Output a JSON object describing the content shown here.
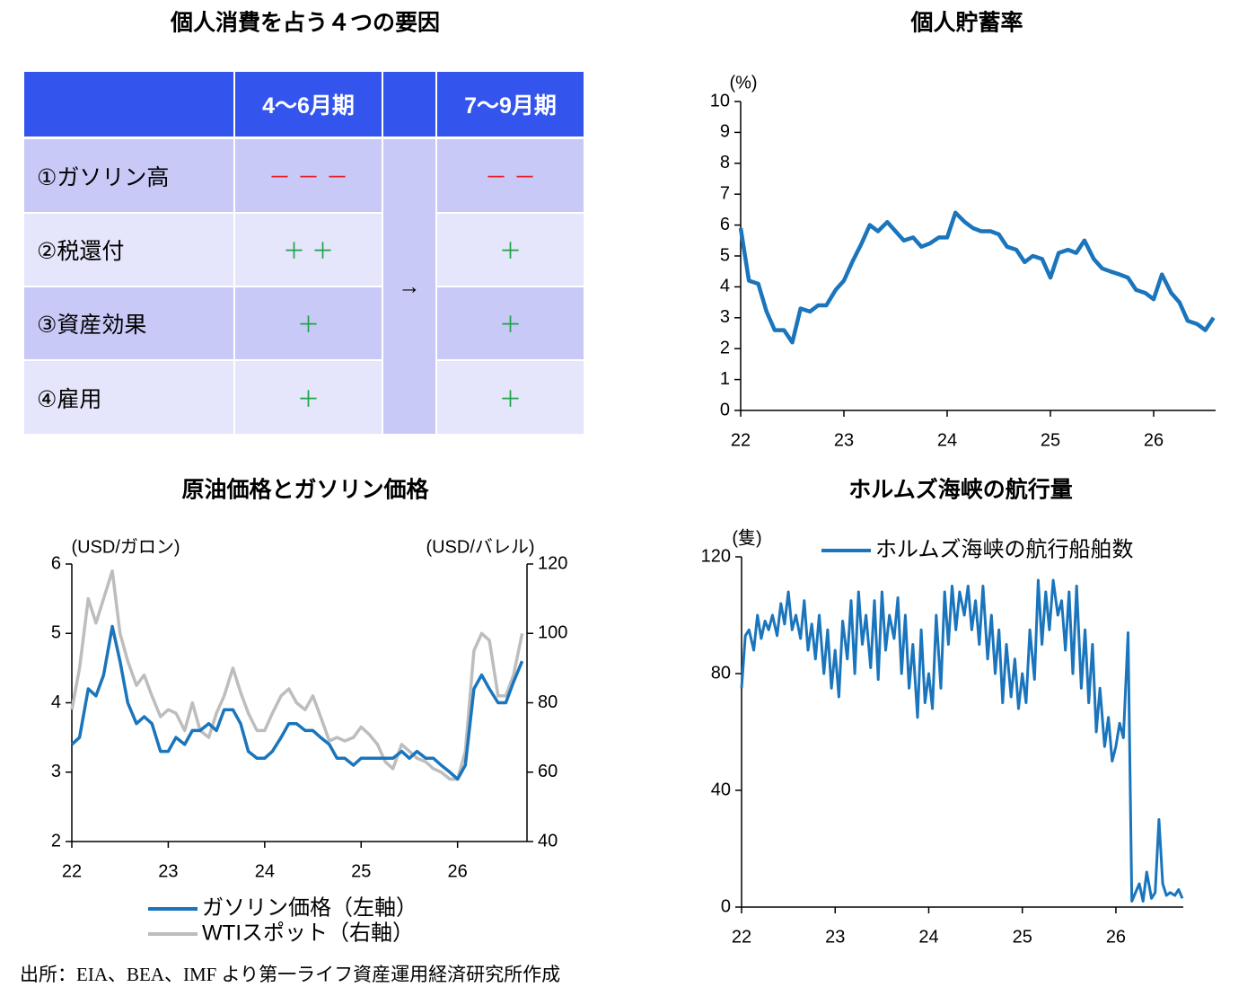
{
  "table": {
    "title": "個人消費を占う４つの要因",
    "header": [
      "4～6月期",
      "7～9月期"
    ],
    "arrow": "→",
    "rows": [
      [
        "①ガソリン高",
        "－ － －",
        "－ －"
      ],
      [
        "②税還付",
        "＋ ＋",
        "＋"
      ],
      [
        "③資産効果",
        "＋",
        "＋"
      ],
      [
        "④雇用",
        "＋",
        "＋"
      ]
    ]
  },
  "chart_data": [
    {
      "type": "line",
      "title": "個人貯蓄率",
      "y_label": "(%)",
      "xlim": [
        22,
        26.6
      ],
      "xticks": [
        22,
        23,
        24,
        25,
        26
      ],
      "ylim": [
        0,
        10
      ],
      "yticks": [
        0,
        1,
        2,
        3,
        4,
        5,
        6,
        7,
        8,
        9,
        10
      ],
      "x": [
        22,
        22.08,
        22.17,
        22.25,
        22.33,
        22.42,
        22.5,
        22.58,
        22.67,
        22.75,
        22.83,
        22.92,
        23,
        23.08,
        23.17,
        23.25,
        23.33,
        23.42,
        23.5,
        23.58,
        23.67,
        23.75,
        23.83,
        23.92,
        24,
        24.08,
        24.17,
        24.25,
        24.33,
        24.42,
        24.5,
        24.58,
        24.67,
        24.75,
        24.83,
        24.92,
        25,
        25.08,
        25.17,
        25.25,
        25.33,
        25.42,
        25.5,
        25.58,
        25.67,
        25.75,
        25.83,
        25.92,
        26,
        26.08,
        26.17,
        26.25,
        26.33,
        26.42,
        26.5,
        26.58
      ],
      "series": [
        {
          "color": "#1a75bc",
          "values": [
            5.9,
            4.2,
            4.1,
            3.2,
            2.6,
            2.6,
            2.2,
            3.3,
            3.2,
            3.4,
            3.4,
            3.9,
            4.2,
            4.8,
            5.4,
            6.0,
            5.8,
            6.1,
            5.8,
            5.5,
            5.6,
            5.3,
            5.4,
            5.6,
            5.6,
            6.4,
            6.1,
            5.9,
            5.8,
            5.8,
            5.7,
            5.3,
            5.2,
            4.8,
            5.0,
            4.9,
            4.3,
            5.1,
            5.2,
            5.1,
            5.5,
            4.9,
            4.6,
            4.5,
            4.4,
            4.3,
            3.9,
            3.8,
            3.6,
            4.4,
            3.8,
            3.5,
            2.9,
            2.8,
            2.6,
            3.0
          ]
        }
      ]
    },
    {
      "type": "line",
      "title": "原油価格とガソリン価格",
      "y_label": "(USD/ガロン)",
      "y2_label": "(USD/バレル)",
      "xlim": [
        22,
        26.72
      ],
      "xticks": [
        22,
        23,
        24,
        25,
        26
      ],
      "ylim": [
        2,
        6
      ],
      "yticks": [
        2,
        3,
        4,
        5,
        6
      ],
      "y2lim": [
        40,
        120
      ],
      "y2ticks": [
        40,
        60,
        80,
        100,
        120
      ],
      "x": [
        22,
        22.08,
        22.17,
        22.25,
        22.33,
        22.42,
        22.5,
        22.58,
        22.67,
        22.75,
        22.83,
        22.92,
        23,
        23.08,
        23.17,
        23.25,
        23.33,
        23.42,
        23.5,
        23.58,
        23.67,
        23.75,
        23.83,
        23.92,
        24,
        24.08,
        24.17,
        24.25,
        24.33,
        24.42,
        24.5,
        24.58,
        24.67,
        24.75,
        24.83,
        24.92,
        25,
        25.08,
        25.17,
        25.25,
        25.33,
        25.42,
        25.5,
        25.58,
        25.67,
        25.75,
        25.83,
        25.92,
        26,
        26.08,
        26.17,
        26.25,
        26.33,
        26.42,
        26.5,
        26.58,
        26.67
      ],
      "series": [
        {
          "name": "WTIスポット（右軸）",
          "color": "#bdbdbd",
          "axis": "y2",
          "values": [
            78,
            90,
            110,
            103,
            110,
            118,
            100,
            92,
            85,
            88,
            82,
            76,
            78,
            77,
            72,
            80,
            72,
            70,
            77,
            82,
            90,
            83,
            77,
            72,
            72,
            77,
            82,
            84,
            80,
            78,
            82,
            76,
            69,
            70,
            69,
            70,
            73,
            71,
            68,
            63,
            61,
            68,
            66,
            64,
            63,
            61,
            60,
            58,
            58,
            66,
            95,
            100,
            98,
            82,
            82,
            88,
            100
          ]
        },
        {
          "name": "ガソリン価格（左軸）",
          "color": "#1a75bc",
          "values": [
            3.4,
            3.5,
            4.2,
            4.1,
            4.4,
            5.1,
            4.6,
            4.0,
            3.7,
            3.8,
            3.7,
            3.3,
            3.3,
            3.5,
            3.4,
            3.6,
            3.6,
            3.7,
            3.6,
            3.9,
            3.9,
            3.7,
            3.3,
            3.2,
            3.2,
            3.3,
            3.5,
            3.7,
            3.7,
            3.6,
            3.6,
            3.5,
            3.4,
            3.2,
            3.2,
            3.1,
            3.2,
            3.2,
            3.2,
            3.2,
            3.2,
            3.3,
            3.2,
            3.3,
            3.2,
            3.2,
            3.1,
            3.0,
            2.9,
            3.1,
            4.2,
            4.4,
            4.2,
            4.0,
            4.0,
            4.3,
            4.6
          ]
        }
      ]
    },
    {
      "type": "line",
      "title": "ホルムズ海峡の航行量",
      "y_label": "(隻)",
      "xlim": [
        22,
        26.72
      ],
      "xticks": [
        22,
        23,
        24,
        25,
        26
      ],
      "ylim": [
        0,
        120
      ],
      "yticks": [
        0,
        40,
        80,
        120
      ],
      "x": [
        22,
        22.04,
        22.08,
        22.13,
        22.17,
        22.21,
        22.25,
        22.29,
        22.33,
        22.38,
        22.42,
        22.46,
        22.5,
        22.54,
        22.58,
        22.63,
        22.67,
        22.71,
        22.75,
        22.79,
        22.83,
        22.88,
        22.92,
        22.96,
        23,
        23.04,
        23.08,
        23.13,
        23.17,
        23.21,
        23.25,
        23.29,
        23.33,
        23.38,
        23.42,
        23.46,
        23.5,
        23.54,
        23.58,
        23.63,
        23.67,
        23.71,
        23.75,
        23.79,
        23.83,
        23.88,
        23.92,
        23.96,
        24,
        24.04,
        24.08,
        24.13,
        24.17,
        24.21,
        24.25,
        24.29,
        24.33,
        24.38,
        24.42,
        24.46,
        24.5,
        24.54,
        24.58,
        24.63,
        24.67,
        24.71,
        24.75,
        24.79,
        24.83,
        24.88,
        24.92,
        24.96,
        25,
        25.04,
        25.08,
        25.13,
        25.17,
        25.21,
        25.25,
        25.29,
        25.33,
        25.38,
        25.42,
        25.46,
        25.5,
        25.54,
        25.58,
        25.63,
        25.67,
        25.71,
        25.75,
        25.79,
        25.83,
        25.88,
        25.92,
        25.96,
        26,
        26.04,
        26.08,
        26.13,
        26.17,
        26.21,
        26.25,
        26.29,
        26.33,
        26.38,
        26.42,
        26.46,
        26.5,
        26.54,
        26.58,
        26.63,
        26.67,
        26.71
      ],
      "series": [
        {
          "name": "ホルムズ海峡の航行船舶数",
          "color": "#1a75bc",
          "values": [
            75,
            93,
            95,
            88,
            100,
            92,
            98,
            95,
            100,
            93,
            104,
            97,
            108,
            95,
            100,
            92,
            105,
            88,
            97,
            85,
            100,
            80,
            95,
            75,
            88,
            72,
            98,
            85,
            105,
            80,
            108,
            90,
            100,
            82,
            105,
            78,
            108,
            88,
            100,
            92,
            106,
            80,
            100,
            75,
            90,
            65,
            95,
            70,
            80,
            68,
            100,
            75,
            108,
            90,
            110,
            95,
            108,
            100,
            110,
            95,
            105,
            90,
            110,
            85,
            100,
            80,
            95,
            70,
            90,
            72,
            85,
            68,
            80,
            70,
            95,
            78,
            112,
            90,
            108,
            95,
            112,
            100,
            105,
            88,
            108,
            80,
            110,
            75,
            95,
            70,
            90,
            60,
            75,
            55,
            65,
            50,
            55,
            63,
            58,
            94,
            2,
            5,
            8,
            2,
            12,
            3,
            5,
            30,
            8,
            4,
            5,
            4,
            6,
            3
          ]
        }
      ]
    }
  ],
  "source": "出所：EIA、BEA、IMF より第一ライフ資産運用経済研究所作成"
}
